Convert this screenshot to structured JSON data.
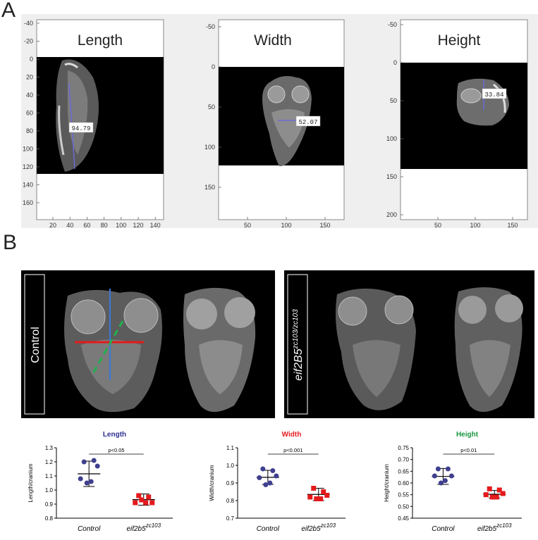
{
  "panelA": {
    "label": "A",
    "plots": [
      {
        "title": "Length",
        "measurement": "94.79",
        "y_ticks": [
          "-40",
          "-20",
          "0",
          "20",
          "40",
          "60",
          "80",
          "100",
          "120",
          "140",
          "160"
        ],
        "x_ticks": [
          "20",
          "40",
          "60",
          "80",
          "100",
          "120",
          "140"
        ]
      },
      {
        "title": "Width",
        "measurement": "52.07",
        "y_ticks": [
          "-50",
          "0",
          "50",
          "100",
          "150"
        ],
        "x_ticks": [
          "50",
          "100",
          "150"
        ]
      },
      {
        "title": "Height",
        "measurement": "33.84",
        "y_ticks": [
          "-50",
          "0",
          "50",
          "100",
          "150",
          "200"
        ],
        "x_ticks": [
          "50",
          "100",
          "150"
        ]
      }
    ]
  },
  "panelB": {
    "label": "B",
    "control_label": "Control",
    "mutant_label_base": "eif2B5",
    "mutant_label_sup": "zc103/zc103"
  },
  "chart_data": [
    {
      "type": "scatter",
      "title": "Length",
      "title_color": "#2e3192",
      "ylabel": "Length/cranium",
      "ylim": [
        0.8,
        1.3
      ],
      "y_ticks": [
        "0.8",
        "0.9",
        "1.0",
        "1.1",
        "1.2",
        "1.3"
      ],
      "categories": [
        "Control",
        "eif2b5"
      ],
      "category_sup": [
        "",
        "zc103"
      ],
      "significance": "p<0.05",
      "series": [
        {
          "name": "Control",
          "color": "#3f3f8f",
          "marker": "circle",
          "values": [
            1.2,
            1.21,
            1.17,
            1.08,
            1.06,
            1.05
          ],
          "mean": 1.115,
          "sd": 0.09
        },
        {
          "name": "eif2b5 zc103",
          "color": "#e41a1c",
          "marker": "square",
          "values": [
            0.96,
            0.95,
            0.91,
            0.91,
            0.91,
            0.93
          ],
          "mean": 0.932,
          "sd": 0.04
        }
      ]
    },
    {
      "type": "scatter",
      "title": "Width",
      "title_color": "#e41a1c",
      "ylabel": "Width/cranium",
      "ylim": [
        0.7,
        1.1
      ],
      "y_ticks": [
        "0.7",
        "0.8",
        "0.9",
        "1.0",
        "1.1"
      ],
      "categories": [
        "Control",
        "eif2b5"
      ],
      "category_sup": [
        "",
        "zc103"
      ],
      "significance": "p<0.001",
      "series": [
        {
          "name": "Control",
          "color": "#3f3f8f",
          "marker": "circle",
          "values": [
            0.98,
            0.97,
            0.94,
            0.93,
            0.9,
            0.89
          ],
          "mean": 0.932,
          "sd": 0.04
        },
        {
          "name": "eif2b5 zc103",
          "color": "#e41a1c",
          "marker": "square",
          "values": [
            0.87,
            0.85,
            0.83,
            0.82,
            0.81,
            0.81
          ],
          "mean": 0.835,
          "sd": 0.035
        }
      ]
    },
    {
      "type": "scatter",
      "title": "Height",
      "title_color": "#1a9641",
      "ylabel": "Height/cranium",
      "ylim": [
        0.45,
        0.75
      ],
      "y_ticks": [
        "0.45",
        "0.50",
        "0.55",
        "0.60",
        "0.65",
        "0.70",
        "0.75"
      ],
      "categories": [
        "Control",
        "eif2b5"
      ],
      "category_sup": [
        "",
        "zc103"
      ],
      "significance": "p<0.01",
      "series": [
        {
          "name": "Control",
          "color": "#3f3f8f",
          "marker": "circle",
          "values": [
            0.66,
            0.66,
            0.63,
            0.63,
            0.61,
            0.6
          ],
          "mean": 0.628,
          "sd": 0.034
        },
        {
          "name": "eif2b5 zc103",
          "color": "#e41a1c",
          "marker": "square",
          "values": [
            0.575,
            0.57,
            0.555,
            0.55,
            0.54,
            0.54
          ],
          "mean": 0.552,
          "sd": 0.016
        }
      ]
    }
  ]
}
